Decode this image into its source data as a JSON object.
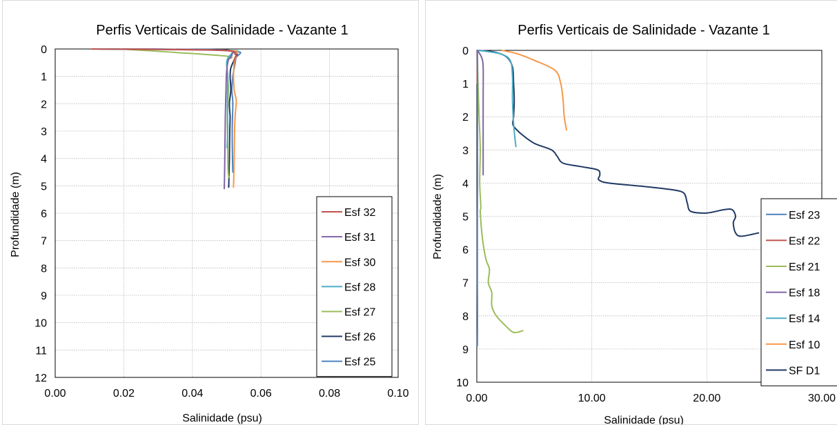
{
  "chart_data": [
    {
      "type": "line",
      "title": "Perfis Verticais de Salinidade - Vazante 1",
      "xlabel": "Salinidade (psu)",
      "ylabel": "Profundidade (m)",
      "xlim": [
        0,
        0.1
      ],
      "ylim": [
        0,
        12
      ],
      "y_inverted": true,
      "x_ticks": [
        "0.00",
        "0.02",
        "0.04",
        "0.06",
        "0.08",
        "0.10"
      ],
      "y_ticks": [
        "0",
        "1",
        "2",
        "3",
        "4",
        "5",
        "6",
        "7",
        "8",
        "9",
        "10",
        "11",
        "12"
      ],
      "grid": true,
      "legend_position": "bottom-right",
      "series": [
        {
          "name": "Esf 32",
          "color": "#c0504d",
          "points": [
            [
              0.0105,
              0
            ],
            [
              0.048,
              0.05
            ],
            [
              0.0525,
              0.2
            ],
            [
              0.0525,
              0.3
            ],
            [
              0.052,
              0.45
            ]
          ]
        },
        {
          "name": "Esf 31",
          "color": "#8064a2",
          "points": [
            [
              0.02,
              0
            ],
            [
              0.049,
              0.05
            ],
            [
              0.0515,
              0.2
            ],
            [
              0.0505,
              0.4
            ],
            [
              0.05,
              0.8
            ],
            [
              0.0498,
              1.5
            ],
            [
              0.0496,
              2.5
            ],
            [
              0.0495,
              3.5
            ],
            [
              0.0494,
              4.5
            ],
            [
              0.0493,
              5.1
            ]
          ]
        },
        {
          "name": "Esf 30",
          "color": "#f79646",
          "points": [
            [
              0.02,
              0
            ],
            [
              0.05,
              0.05
            ],
            [
              0.0527,
              0.2
            ],
            [
              0.0522,
              0.5
            ],
            [
              0.052,
              1
            ],
            [
              0.0522,
              1.5
            ],
            [
              0.0528,
              1.9
            ],
            [
              0.0525,
              2.4
            ],
            [
              0.0523,
              3
            ],
            [
              0.0522,
              4
            ],
            [
              0.052,
              5.05
            ]
          ]
        },
        {
          "name": "Esf 28",
          "color": "#4bacc6",
          "points": [
            [
              0.012,
              0
            ],
            [
              0.0502,
              0.05
            ],
            [
              0.0515,
              0.15
            ],
            [
              0.0505,
              0.3
            ],
            [
              0.05,
              0.5
            ],
            [
              0.0503,
              1
            ],
            [
              0.0502,
              2
            ],
            [
              0.0503,
              3
            ],
            [
              0.0501,
              3.6
            ]
          ]
        },
        {
          "name": "Esf 27",
          "color": "#9bbb59",
          "points": [
            [
              0.019,
              0
            ],
            [
              0.049,
              0.25
            ],
            [
              0.0502,
              0.4
            ],
            [
              0.05,
              0.6
            ],
            [
              0.0503,
              1
            ],
            [
              0.0505,
              1.5
            ],
            [
              0.0502,
              2.5
            ],
            [
              0.0503,
              3.5
            ],
            [
              0.0504,
              4.4
            ],
            [
              0.0506,
              4.7
            ]
          ]
        },
        {
          "name": "Esf 26",
          "color": "#1f3864",
          "points": [
            [
              0.011,
              0
            ],
            [
              0.046,
              0.02
            ],
            [
              0.052,
              0.1
            ],
            [
              0.053,
              0.2
            ],
            [
              0.0522,
              0.4
            ],
            [
              0.0512,
              0.7
            ],
            [
              0.051,
              1
            ],
            [
              0.0512,
              1.5
            ],
            [
              0.0508,
              2
            ],
            [
              0.051,
              2.5
            ],
            [
              0.0509,
              3
            ],
            [
              0.0508,
              4
            ],
            [
              0.0507,
              4.5
            ],
            [
              0.0506,
              5.05
            ]
          ]
        },
        {
          "name": "Esf 25",
          "color": "#4f81bd",
          "points": [
            [
              0.011,
              0
            ],
            [
              0.045,
              0.02
            ],
            [
              0.053,
              0.1
            ],
            [
              0.054,
              0.15
            ],
            [
              0.0528,
              0.3
            ],
            [
              0.0525,
              0.5
            ],
            [
              0.0518,
              1
            ],
            [
              0.0515,
              1.5
            ],
            [
              0.0518,
              2
            ],
            [
              0.0516,
              3
            ],
            [
              0.0517,
              4
            ],
            [
              0.0518,
              4.5
            ]
          ]
        }
      ]
    },
    {
      "type": "line",
      "title": "Perfis Verticais de Salinidade - Vazante 1",
      "xlabel": "Salinidade (psu)",
      "ylabel": "Profundidade (m)",
      "xlim": [
        0,
        30
      ],
      "ylim": [
        0,
        10
      ],
      "y_inverted": true,
      "x_ticks": [
        "0.00",
        "10.00",
        "20.00",
        "30.00"
      ],
      "y_ticks": [
        "0",
        "1",
        "2",
        "3",
        "4",
        "5",
        "6",
        "7",
        "8",
        "9",
        "10"
      ],
      "grid": true,
      "legend_position": "right",
      "series": [
        {
          "name": "Esf 23",
          "color": "#4f81bd",
          "points": [
            [
              0.05,
              0
            ],
            [
              0.06,
              1
            ],
            [
              0.06,
              2
            ],
            [
              0.06,
              3
            ],
            [
              0.06,
              4
            ],
            [
              0.05,
              5
            ],
            [
              0.05,
              6
            ],
            [
              0.05,
              7
            ],
            [
              0.06,
              8
            ],
            [
              0.05,
              8.9
            ]
          ]
        },
        {
          "name": "Esf 22",
          "color": "#c0504d",
          "points": [
            [
              0.02,
              0
            ],
            [
              0.03,
              0.5
            ],
            [
              0.03,
              1
            ]
          ]
        },
        {
          "name": "Esf 21",
          "color": "#9bbb59",
          "points": [
            [
              0.05,
              0
            ],
            [
              0.1,
              1
            ],
            [
              0.2,
              2
            ],
            [
              0.3,
              3
            ],
            [
              0.25,
              4
            ],
            [
              0.35,
              4.7
            ],
            [
              0.3,
              4.9
            ],
            [
              0.5,
              5.7
            ],
            [
              0.8,
              6.3
            ],
            [
              1.1,
              6.6
            ],
            [
              1.0,
              7
            ],
            [
              1.3,
              7.3
            ],
            [
              1.3,
              7.7
            ],
            [
              1.7,
              8
            ],
            [
              2.5,
              8.3
            ],
            [
              3.2,
              8.5
            ],
            [
              4,
              8.45
            ]
          ]
        },
        {
          "name": "Esf 18",
          "color": "#8064a2",
          "points": [
            [
              0.05,
              0
            ],
            [
              0.4,
              0.2
            ],
            [
              0.55,
              0.5
            ],
            [
              0.55,
              1.5
            ],
            [
              0.55,
              2.5
            ],
            [
              0.55,
              3.2
            ],
            [
              0.55,
              3.75
            ]
          ]
        },
        {
          "name": "Esf 14",
          "color": "#4bacc6",
          "points": [
            [
              0.1,
              0
            ],
            [
              2,
              0.1
            ],
            [
              2.9,
              0.3
            ],
            [
              3.1,
              0.8
            ],
            [
              3.1,
              1.5
            ],
            [
              3.2,
              2.2
            ],
            [
              3.3,
              2.6
            ],
            [
              3.4,
              2.9
            ]
          ]
        },
        {
          "name": "Esf 10",
          "color": "#f79646",
          "points": [
            [
              2.2,
              0
            ],
            [
              3.5,
              0.1
            ],
            [
              5,
              0.3
            ],
            [
              6.8,
              0.6
            ],
            [
              7.3,
              1
            ],
            [
              7.5,
              1.5
            ],
            [
              7.6,
              2
            ],
            [
              7.8,
              2.4
            ]
          ]
        },
        {
          "name": "SF D1",
          "color": "#1f3864",
          "points": [
            [
              0.1,
              0
            ],
            [
              1.5,
              0.05
            ],
            [
              2.6,
              0.2
            ],
            [
              3.1,
              0.5
            ],
            [
              3.2,
              1
            ],
            [
              3.25,
              1.5
            ],
            [
              3.2,
              2
            ],
            [
              3.15,
              2.25
            ],
            [
              3.8,
              2.5
            ],
            [
              5,
              2.8
            ],
            [
              6.5,
              3
            ],
            [
              7,
              3.2
            ],
            [
              7.5,
              3.4
            ],
            [
              9,
              3.5
            ],
            [
              10.5,
              3.6
            ],
            [
              10.7,
              3.75
            ],
            [
              10.6,
              3.9
            ],
            [
              11.5,
              4
            ],
            [
              14.5,
              4.1
            ],
            [
              17,
              4.2
            ],
            [
              18,
              4.3
            ],
            [
              18.3,
              4.6
            ],
            [
              18.6,
              4.85
            ],
            [
              20,
              4.9
            ],
            [
              21.5,
              4.8
            ],
            [
              22.2,
              4.8
            ],
            [
              22.5,
              5
            ],
            [
              22.3,
              5.2
            ],
            [
              22.5,
              5.5
            ],
            [
              23,
              5.6
            ],
            [
              24.5,
              5.5
            ]
          ]
        }
      ]
    }
  ]
}
